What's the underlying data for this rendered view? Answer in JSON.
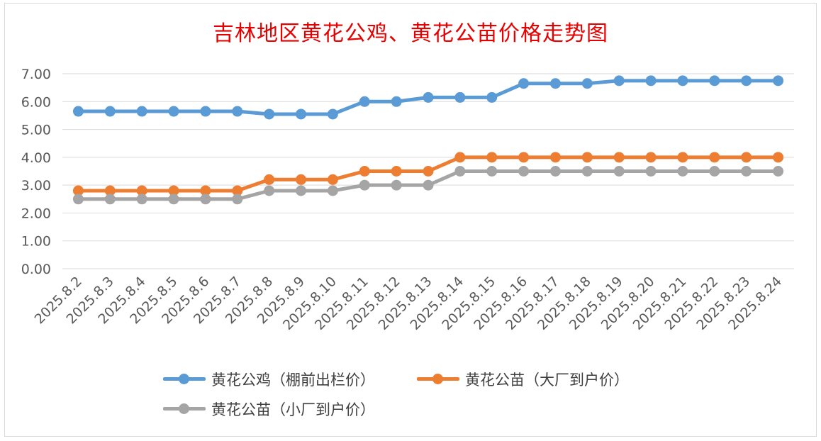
{
  "chart_data": {
    "type": "line",
    "title": "吉林地区黄花公鸡、黄花公苗价格走势图",
    "categories": [
      "2025.8.2",
      "2025.8.3",
      "2025.8.4",
      "2025.8.5",
      "2025.8.6",
      "2025.8.7",
      "2025.8.8",
      "2025.8.9",
      "2025.8.10",
      "2025.8.11",
      "2025.8.12",
      "2025.8.13",
      "2025.8.14",
      "2025.8.15",
      "2025.8.16",
      "2025.8.17",
      "2025.8.18",
      "2025.8.19",
      "2025.8.20",
      "2025.8.21",
      "2025.8.22",
      "2025.8.23",
      "2025.8.24"
    ],
    "ylim": [
      0,
      7
    ],
    "yticks": [
      "0.00",
      "1.00",
      "2.00",
      "3.00",
      "4.00",
      "5.00",
      "6.00",
      "7.00"
    ],
    "grid": true,
    "legend_position": "bottom",
    "series": [
      {
        "name": "黄花公鸡（棚前出栏价）",
        "color": "#5b9bd5",
        "values": [
          5.65,
          5.65,
          5.65,
          5.65,
          5.65,
          5.65,
          5.55,
          5.55,
          5.55,
          6.0,
          6.0,
          6.15,
          6.15,
          6.15,
          6.65,
          6.65,
          6.65,
          6.75,
          6.75,
          6.75,
          6.75,
          6.75,
          6.75
        ]
      },
      {
        "name": "黄花公苗（大厂到户价）",
        "color": "#ed7d31",
        "values": [
          2.8,
          2.8,
          2.8,
          2.8,
          2.8,
          2.8,
          3.2,
          3.2,
          3.2,
          3.5,
          3.5,
          3.5,
          4.0,
          4.0,
          4.0,
          4.0,
          4.0,
          4.0,
          4.0,
          4.0,
          4.0,
          4.0,
          4.0
        ]
      },
      {
        "name": "黄花公苗（小厂到户价）",
        "color": "#a5a5a5",
        "values": [
          2.5,
          2.5,
          2.5,
          2.5,
          2.5,
          2.5,
          2.8,
          2.8,
          2.8,
          3.0,
          3.0,
          3.0,
          3.5,
          3.5,
          3.5,
          3.5,
          3.5,
          3.5,
          3.5,
          3.5,
          3.5,
          3.5,
          3.5
        ]
      }
    ]
  }
}
